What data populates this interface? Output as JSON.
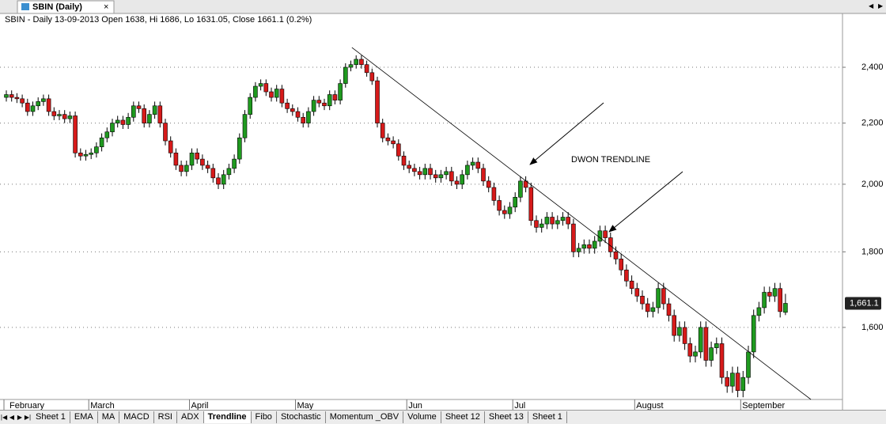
{
  "window": {
    "tab_title": "SBIN (Daily)",
    "close_icon": "×",
    "sheets": [
      "Sheet 1",
      "EMA",
      "MA",
      "MACD",
      "RSI",
      "ADX",
      "Trendline",
      "Fibo",
      "Stochastic",
      "Momentum _OBV",
      "Volume",
      "Sheet 12",
      "Sheet 13",
      "Sheet 1"
    ],
    "active_sheet": 6
  },
  "chart_data": {
    "type": "candlestick",
    "title": "SBIN - Daily 13-09-2013 Open 1638, Hi 1686, Lo 1631.05, Close 1661.1 (0.2%)",
    "annotation": "DWON TRENDLINE",
    "last_price_label": "1,661.1",
    "log_scale": true,
    "grid": true,
    "up_color": "#1f9a1f",
    "down_color": "#d61a1a",
    "ylim": [
      1430,
      2610
    ],
    "yticks": [
      {
        "value": 1600,
        "label": "1,600"
      },
      {
        "value": 1800,
        "label": "1,800"
      },
      {
        "value": 2000,
        "label": "2,000"
      },
      {
        "value": 2200,
        "label": "2,200"
      },
      {
        "value": 2400,
        "label": "2,400"
      }
    ],
    "trendline": {
      "x": [
        65.2,
        151.8
      ],
      "y": [
        2475,
        1430
      ]
    },
    "categories": [
      "February",
      null,
      null,
      null,
      null,
      null,
      null,
      null,
      null,
      null,
      null,
      null,
      null,
      null,
      null,
      null,
      "March",
      null,
      null,
      null,
      null,
      null,
      null,
      null,
      null,
      null,
      null,
      null,
      null,
      null,
      null,
      null,
      null,
      null,
      null,
      "April",
      null,
      null,
      null,
      null,
      null,
      null,
      null,
      null,
      null,
      null,
      null,
      null,
      null,
      null,
      null,
      null,
      null,
      null,
      null,
      "May",
      null,
      null,
      null,
      null,
      null,
      null,
      null,
      null,
      null,
      null,
      null,
      null,
      null,
      null,
      null,
      null,
      null,
      null,
      null,
      null,
      "Jun",
      null,
      null,
      null,
      null,
      null,
      null,
      null,
      null,
      null,
      null,
      null,
      null,
      null,
      null,
      null,
      null,
      null,
      null,
      null,
      "Jul",
      null,
      null,
      null,
      null,
      null,
      null,
      null,
      null,
      null,
      null,
      null,
      null,
      null,
      null,
      null,
      null,
      null,
      null,
      null,
      null,
      null,
      null,
      "August",
      null,
      null,
      null,
      null,
      null,
      null,
      null,
      null,
      null,
      null,
      null,
      null,
      null,
      null,
      null,
      null,
      null,
      null,
      null,
      "September",
      null,
      null,
      null,
      null,
      null,
      null,
      null,
      null
    ],
    "open": [
      2290,
      2300,
      2290,
      2285,
      2270,
      2240,
      2260,
      2275,
      2285,
      2240,
      2225,
      2230,
      2215,
      2225,
      2100,
      2090,
      2095,
      2100,
      2120,
      2150,
      2170,
      2200,
      2210,
      2195,
      2220,
      2260,
      2250,
      2200,
      2230,
      2260,
      2200,
      2140,
      2100,
      2060,
      2040,
      2060,
      2100,
      2080,
      2060,
      2050,
      2020,
      2000,
      2030,
      2050,
      2080,
      2150,
      2230,
      2290,
      2330,
      2340,
      2310,
      2290,
      2320,
      2270,
      2250,
      2240,
      2220,
      2200,
      2240,
      2280,
      2270,
      2260,
      2300,
      2280,
      2340,
      2400,
      2410,
      2430,
      2410,
      2380,
      2350,
      2200,
      2150,
      2140,
      2130,
      2090,
      2060,
      2050,
      2040,
      2030,
      2050,
      2030,
      2020,
      2030,
      2040,
      2010,
      2000,
      2030,
      2060,
      2070,
      2050,
      2010,
      1990,
      1950,
      1920,
      1910,
      1930,
      1960,
      2010,
      1990,
      1890,
      1870,
      1880,
      1900,
      1880,
      1890,
      1900,
      1880,
      1800,
      1810,
      1820,
      1810,
      1830,
      1860,
      1840,
      1800,
      1780,
      1750,
      1720,
      1700,
      1680,
      1660,
      1640,
      1650,
      1700,
      1660,
      1630,
      1580,
      1600,
      1560,
      1530,
      1540,
      1600,
      1520,
      1550,
      1560,
      1480,
      1460,
      1490,
      1450,
      1480,
      1540,
      1630,
      1650,
      1690,
      1680,
      1700,
      1638
    ],
    "high": [
      2315,
      2315,
      2305,
      2300,
      2285,
      2275,
      2290,
      2300,
      2300,
      2255,
      2245,
      2245,
      2240,
      2240,
      2115,
      2110,
      2115,
      2135,
      2165,
      2185,
      2215,
      2225,
      2225,
      2235,
      2275,
      2275,
      2265,
      2245,
      2275,
      2275,
      2215,
      2155,
      2115,
      2075,
      2075,
      2115,
      2115,
      2095,
      2075,
      2065,
      2035,
      2045,
      2065,
      2095,
      2165,
      2245,
      2305,
      2345,
      2355,
      2355,
      2325,
      2335,
      2335,
      2285,
      2265,
      2255,
      2235,
      2255,
      2295,
      2295,
      2285,
      2315,
      2315,
      2355,
      2415,
      2425,
      2445,
      2445,
      2425,
      2395,
      2365,
      2215,
      2165,
      2155,
      2145,
      2105,
      2075,
      2065,
      2055,
      2065,
      2065,
      2045,
      2045,
      2055,
      2055,
      2025,
      2045,
      2075,
      2085,
      2085,
      2065,
      2025,
      2005,
      1965,
      1935,
      1945,
      1975,
      2025,
      2025,
      2005,
      1905,
      1895,
      1915,
      1915,
      1905,
      1915,
      1915,
      1895,
      1825,
      1835,
      1835,
      1845,
      1875,
      1875,
      1855,
      1815,
      1795,
      1765,
      1735,
      1715,
      1695,
      1675,
      1665,
      1715,
      1715,
      1675,
      1645,
      1615,
      1615,
      1575,
      1555,
      1615,
      1615,
      1565,
      1575,
      1575,
      1495,
      1505,
      1505,
      1495,
      1555,
      1645,
      1665,
      1705,
      1705,
      1715,
      1715,
      1686
    ],
    "low": [
      2275,
      2275,
      2270,
      2255,
      2225,
      2225,
      2245,
      2260,
      2225,
      2210,
      2210,
      2200,
      2200,
      2085,
      2075,
      2075,
      2080,
      2085,
      2105,
      2135,
      2155,
      2185,
      2180,
      2180,
      2205,
      2235,
      2185,
      2185,
      2215,
      2185,
      2125,
      2085,
      2045,
      2025,
      2025,
      2045,
      2065,
      2045,
      2035,
      2005,
      1985,
      1985,
      2015,
      2035,
      2065,
      2135,
      2215,
      2275,
      2315,
      2295,
      2275,
      2275,
      2255,
      2235,
      2225,
      2205,
      2185,
      2185,
      2225,
      2255,
      2245,
      2245,
      2265,
      2265,
      2325,
      2385,
      2395,
      2395,
      2365,
      2335,
      2185,
      2135,
      2125,
      2115,
      2075,
      2045,
      2035,
      2025,
      2015,
      2015,
      2015,
      2005,
      2005,
      2015,
      1995,
      1985,
      1985,
      2015,
      2045,
      2035,
      1995,
      1975,
      1935,
      1905,
      1895,
      1895,
      1915,
      1945,
      1975,
      1875,
      1855,
      1855,
      1865,
      1865,
      1865,
      1875,
      1865,
      1785,
      1785,
      1795,
      1795,
      1795,
      1815,
      1825,
      1785,
      1765,
      1735,
      1705,
      1685,
      1665,
      1645,
      1625,
      1625,
      1635,
      1645,
      1615,
      1565,
      1565,
      1545,
      1515,
      1515,
      1525,
      1505,
      1505,
      1535,
      1465,
      1445,
      1445,
      1435,
      1435,
      1465,
      1525,
      1615,
      1635,
      1665,
      1665,
      1625,
      1631.05
    ],
    "close": [
      2300,
      2290,
      2285,
      2270,
      2240,
      2260,
      2275,
      2285,
      2240,
      2225,
      2230,
      2215,
      2225,
      2100,
      2090,
      2095,
      2100,
      2120,
      2150,
      2170,
      2200,
      2210,
      2195,
      2220,
      2260,
      2250,
      2200,
      2230,
      2260,
      2200,
      2140,
      2100,
      2060,
      2040,
      2060,
      2100,
      2080,
      2060,
      2050,
      2020,
      2000,
      2030,
      2050,
      2080,
      2150,
      2230,
      2290,
      2330,
      2340,
      2310,
      2290,
      2320,
      2270,
      2250,
      2240,
      2220,
      2200,
      2240,
      2280,
      2270,
      2260,
      2300,
      2280,
      2340,
      2400,
      2410,
      2430,
      2410,
      2380,
      2350,
      2200,
      2150,
      2140,
      2130,
      2090,
      2060,
      2050,
      2040,
      2030,
      2050,
      2030,
      2020,
      2030,
      2040,
      2010,
      2000,
      2030,
      2060,
      2070,
      2050,
      2010,
      1990,
      1950,
      1920,
      1910,
      1930,
      1960,
      2010,
      1990,
      1890,
      1870,
      1880,
      1900,
      1880,
      1890,
      1900,
      1880,
      1800,
      1810,
      1820,
      1810,
      1830,
      1860,
      1840,
      1800,
      1780,
      1750,
      1720,
      1700,
      1680,
      1660,
      1640,
      1650,
      1700,
      1660,
      1630,
      1580,
      1600,
      1560,
      1530,
      1540,
      1600,
      1520,
      1550,
      1560,
      1480,
      1460,
      1490,
      1450,
      1480,
      1540,
      1630,
      1650,
      1690,
      1680,
      1700,
      1640,
      1661.1
    ]
  }
}
